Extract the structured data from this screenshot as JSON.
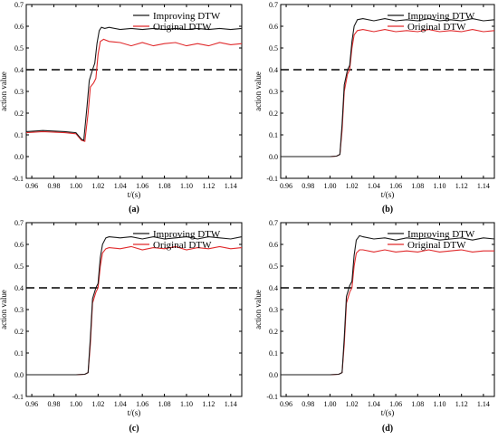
{
  "chart_data": [
    {
      "type": "line",
      "panel_label": "(a)",
      "xlabel": "t/(s)",
      "ylabel": "action value",
      "xlim": [
        0.955,
        1.15
      ],
      "ylim": [
        -0.1,
        0.7
      ],
      "xticks": [
        "0.96",
        "0.98",
        "1.00",
        "1.02",
        "1.04",
        "1.06",
        "1.08",
        "1.10",
        "1.12",
        "1.14"
      ],
      "yticks": [
        "-0.1",
        "0.0",
        "0.1",
        "0.2",
        "0.3",
        "0.4",
        "0.5",
        "0.6",
        "0.7"
      ],
      "legend_position": "top-right",
      "threshold": 0.4,
      "series": [
        {
          "name": "Improving DTW",
          "color": "#1a1a1a",
          "x": [
            0.955,
            0.97,
            0.99,
            1.0,
            1.005,
            1.007,
            1.01,
            1.012,
            1.015,
            1.017,
            1.019,
            1.021,
            1.023,
            1.026,
            1.03,
            1.04,
            1.05,
            1.06,
            1.07,
            1.08,
            1.09,
            1.1,
            1.11,
            1.12,
            1.13,
            1.14,
            1.15
          ],
          "y": [
            0.115,
            0.12,
            0.115,
            0.11,
            0.08,
            0.075,
            0.23,
            0.35,
            0.4,
            0.43,
            0.52,
            0.58,
            0.595,
            0.59,
            0.595,
            0.585,
            0.59,
            0.585,
            0.59,
            0.585,
            0.59,
            0.585,
            0.59,
            0.585,
            0.59,
            0.585,
            0.59
          ]
        },
        {
          "name": "Original DTW",
          "color": "#e0292b",
          "x": [
            0.955,
            0.97,
            0.99,
            1.0,
            1.005,
            1.008,
            1.011,
            1.013,
            1.016,
            1.018,
            1.02,
            1.022,
            1.025,
            1.03,
            1.04,
            1.05,
            1.06,
            1.07,
            1.08,
            1.09,
            1.1,
            1.11,
            1.12,
            1.13,
            1.14,
            1.15
          ],
          "y": [
            0.11,
            0.115,
            0.11,
            0.105,
            0.075,
            0.07,
            0.2,
            0.32,
            0.34,
            0.36,
            0.47,
            0.53,
            0.54,
            0.53,
            0.525,
            0.51,
            0.525,
            0.51,
            0.52,
            0.525,
            0.51,
            0.52,
            0.51,
            0.525,
            0.515,
            0.52
          ]
        }
      ]
    },
    {
      "type": "line",
      "panel_label": "(b)",
      "xlabel": "t/(s)",
      "ylabel": "action value",
      "xlim": [
        0.955,
        1.15
      ],
      "ylim": [
        -0.1,
        0.7
      ],
      "xticks": [
        "0.96",
        "0.98",
        "1.00",
        "1.02",
        "1.04",
        "1.06",
        "1.08",
        "1.10",
        "1.12",
        "1.14"
      ],
      "yticks": [
        "-0.1",
        "0.0",
        "0.1",
        "0.2",
        "0.3",
        "0.4",
        "0.5",
        "0.6",
        "0.7"
      ],
      "legend_position": "top-right",
      "threshold": 0.4,
      "series": [
        {
          "name": "Improving DTW",
          "color": "#1a1a1a",
          "x": [
            0.955,
            0.98,
            1.0,
            1.006,
            1.009,
            1.011,
            1.013,
            1.016,
            1.018,
            1.02,
            1.022,
            1.025,
            1.03,
            1.04,
            1.05,
            1.06,
            1.07,
            1.08,
            1.09,
            1.1,
            1.11,
            1.12,
            1.13,
            1.14,
            1.15
          ],
          "y": [
            0.0,
            0.0,
            0.0,
            0.002,
            0.01,
            0.15,
            0.33,
            0.4,
            0.42,
            0.53,
            0.6,
            0.63,
            0.635,
            0.625,
            0.635,
            0.625,
            0.63,
            0.625,
            0.635,
            0.625,
            0.63,
            0.625,
            0.635,
            0.625,
            0.63
          ]
        },
        {
          "name": "Original DTW",
          "color": "#e0292b",
          "x": [
            0.955,
            0.98,
            1.0,
            1.006,
            1.009,
            1.011,
            1.013,
            1.016,
            1.018,
            1.02,
            1.022,
            1.025,
            1.03,
            1.04,
            1.05,
            1.06,
            1.07,
            1.08,
            1.09,
            1.1,
            1.11,
            1.12,
            1.13,
            1.14,
            1.15
          ],
          "y": [
            0.0,
            0.0,
            0.0,
            0.002,
            0.01,
            0.12,
            0.3,
            0.38,
            0.4,
            0.5,
            0.56,
            0.58,
            0.585,
            0.575,
            0.585,
            0.575,
            0.58,
            0.575,
            0.585,
            0.575,
            0.58,
            0.575,
            0.585,
            0.575,
            0.58
          ]
        }
      ]
    },
    {
      "type": "line",
      "panel_label": "(c)",
      "xlabel": "t/(s)",
      "ylabel": "action value",
      "xlim": [
        0.955,
        1.15
      ],
      "ylim": [
        -0.1,
        0.7
      ],
      "xticks": [
        "0.96",
        "0.98",
        "1.00",
        "1.02",
        "1.04",
        "1.06",
        "1.08",
        "1.10",
        "1.12",
        "1.14"
      ],
      "yticks": [
        "-0.1",
        "0.0",
        "0.1",
        "0.2",
        "0.3",
        "0.4",
        "0.5",
        "0.6",
        "0.7"
      ],
      "legend_position": "top-right",
      "threshold": 0.4,
      "series": [
        {
          "name": "Improving DTW",
          "color": "#1a1a1a",
          "x": [
            0.955,
            0.98,
            1.0,
            1.008,
            1.011,
            1.013,
            1.015,
            1.018,
            1.02,
            1.022,
            1.024,
            1.027,
            1.03,
            1.04,
            1.05,
            1.06,
            1.07,
            1.08,
            1.09,
            1.1,
            1.11,
            1.12,
            1.13,
            1.14,
            1.15
          ],
          "y": [
            0.0,
            0.0,
            0.0,
            0.002,
            0.01,
            0.17,
            0.35,
            0.4,
            0.42,
            0.54,
            0.6,
            0.63,
            0.635,
            0.63,
            0.635,
            0.625,
            0.635,
            0.625,
            0.63,
            0.635,
            0.625,
            0.635,
            0.63,
            0.625,
            0.635
          ]
        },
        {
          "name": "Original DTW",
          "color": "#e0292b",
          "x": [
            0.955,
            0.98,
            1.0,
            1.008,
            1.011,
            1.013,
            1.015,
            1.018,
            1.02,
            1.022,
            1.024,
            1.027,
            1.03,
            1.04,
            1.05,
            1.06,
            1.07,
            1.08,
            1.09,
            1.1,
            1.11,
            1.12,
            1.13,
            1.14,
            1.15
          ],
          "y": [
            0.0,
            0.0,
            0.0,
            0.002,
            0.01,
            0.14,
            0.33,
            0.38,
            0.4,
            0.5,
            0.56,
            0.58,
            0.585,
            0.58,
            0.59,
            0.575,
            0.585,
            0.58,
            0.59,
            0.575,
            0.585,
            0.58,
            0.59,
            0.58,
            0.585
          ]
        }
      ]
    },
    {
      "type": "line",
      "panel_label": "(d)",
      "xlabel": "t/(s)",
      "ylabel": "action value",
      "xlim": [
        0.955,
        1.15
      ],
      "ylim": [
        -0.1,
        0.7
      ],
      "xticks": [
        "0.96",
        "0.98",
        "1.00",
        "1.02",
        "1.04",
        "1.06",
        "1.08",
        "1.10",
        "1.12",
        "1.14"
      ],
      "yticks": [
        "-0.1",
        "0.0",
        "0.1",
        "0.2",
        "0.3",
        "0.4",
        "0.5",
        "0.6",
        "0.7"
      ],
      "legend_position": "top-right",
      "threshold": 0.4,
      "series": [
        {
          "name": "Improving DTW",
          "color": "#1a1a1a",
          "x": [
            0.955,
            0.98,
            1.0,
            1.008,
            1.011,
            1.013,
            1.015,
            1.018,
            1.02,
            1.022,
            1.024,
            1.027,
            1.03,
            1.04,
            1.05,
            1.06,
            1.07,
            1.08,
            1.09,
            1.1,
            1.11,
            1.12,
            1.13,
            1.14,
            1.15
          ],
          "y": [
            0.0,
            0.0,
            0.0,
            0.002,
            0.01,
            0.17,
            0.36,
            0.41,
            0.43,
            0.55,
            0.62,
            0.64,
            0.635,
            0.625,
            0.63,
            0.62,
            0.63,
            0.625,
            0.63,
            0.62,
            0.625,
            0.63,
            0.62,
            0.63,
            0.625
          ]
        },
        {
          "name": "Original DTW",
          "color": "#e0292b",
          "x": [
            0.955,
            0.98,
            1.0,
            1.008,
            1.011,
            1.013,
            1.015,
            1.018,
            1.02,
            1.022,
            1.024,
            1.027,
            1.03,
            1.04,
            1.05,
            1.06,
            1.07,
            1.08,
            1.09,
            1.1,
            1.11,
            1.12,
            1.13,
            1.14,
            1.15
          ],
          "y": [
            0.0,
            0.0,
            0.0,
            0.002,
            0.01,
            0.14,
            0.33,
            0.38,
            0.4,
            0.5,
            0.56,
            0.575,
            0.575,
            0.565,
            0.575,
            0.565,
            0.57,
            0.565,
            0.575,
            0.565,
            0.57,
            0.575,
            0.565,
            0.57,
            0.57
          ]
        }
      ]
    }
  ]
}
